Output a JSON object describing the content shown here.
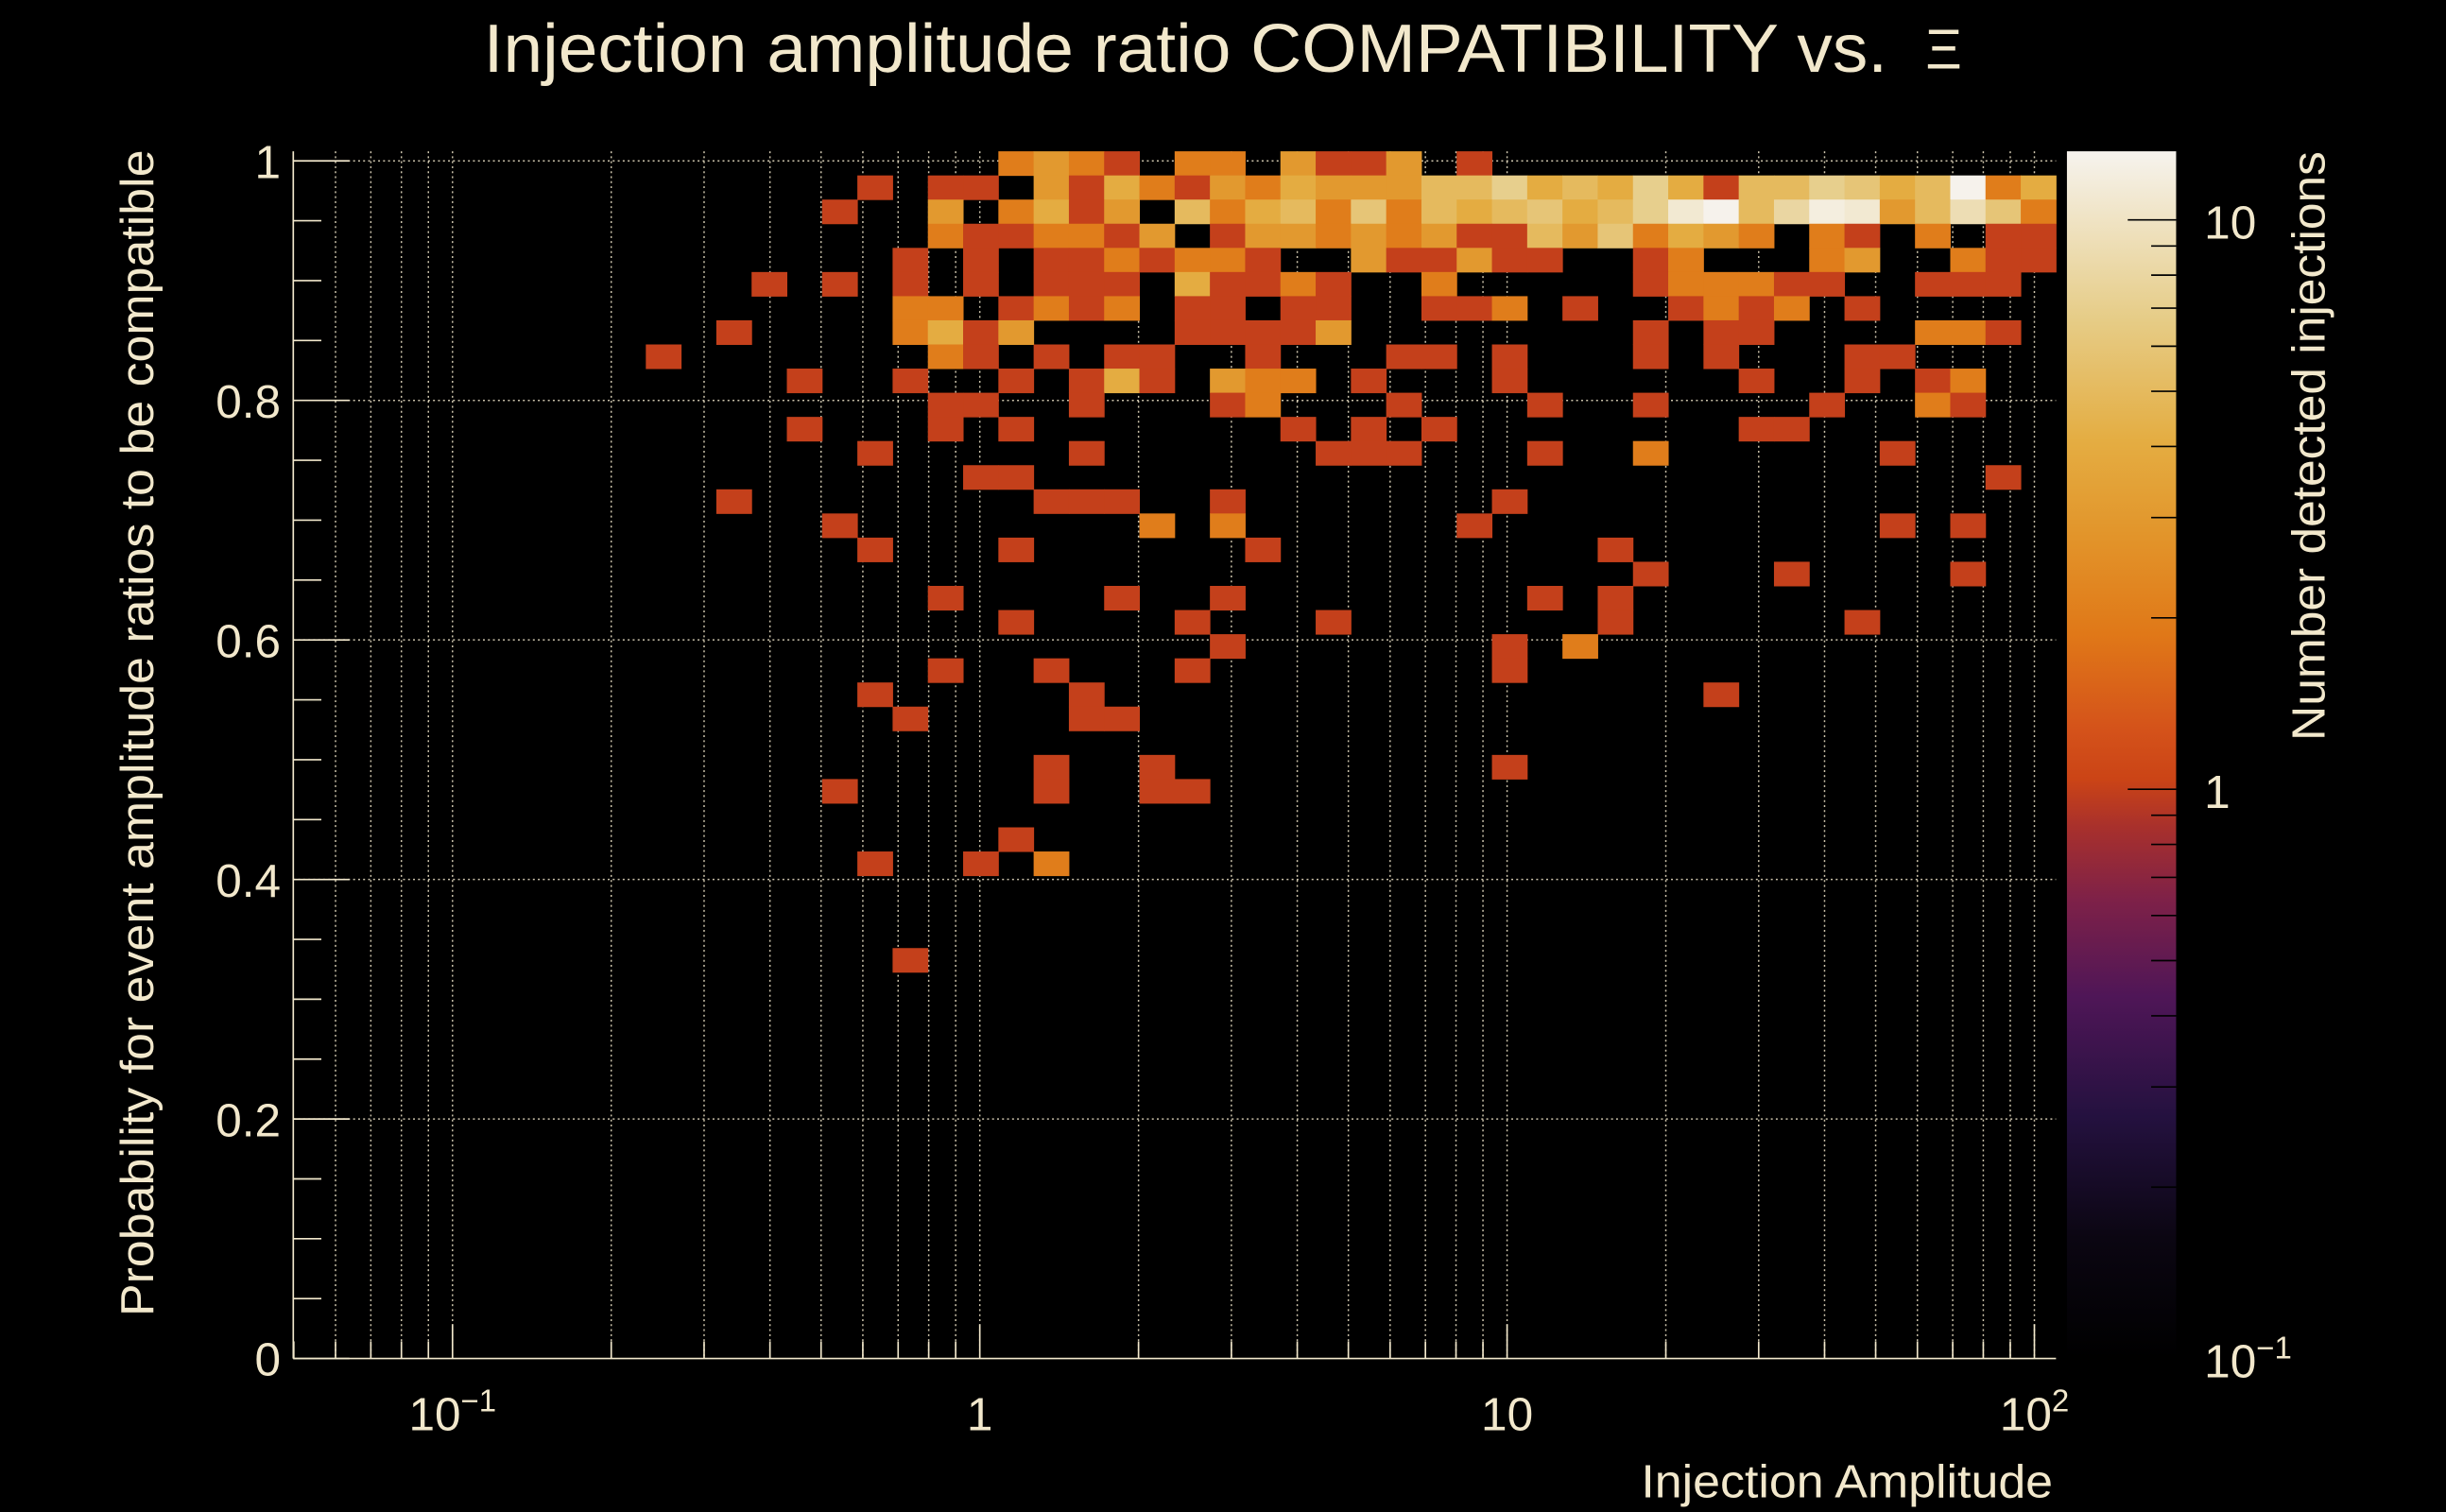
{
  "chart_data": {
    "type": "heatmap",
    "title": "Injection amplitude ratio COMPATIBILITY vs.",
    "title_symbol": "Ξ",
    "xlabel": "Injection Amplitude",
    "ylabel": "Probability for event amplitude ratios to be compatible",
    "zlabel": "Number detected injections",
    "x_scale": "log",
    "x_log10_range": [
      -1.302,
      2.041
    ],
    "x_bins": 50,
    "ylim": [
      0,
      1.008
    ],
    "y_bins": 50,
    "z_scale": "log",
    "zlim": [
      0.1,
      13.2
    ],
    "grid": true,
    "x_ticks": [
      {
        "value": 0.1,
        "base": "10",
        "exp": "−1"
      },
      {
        "value": 1,
        "base": "1",
        "exp": ""
      },
      {
        "value": 10,
        "base": "10",
        "exp": ""
      },
      {
        "value": 100,
        "base": "10",
        "exp": "2"
      }
    ],
    "y_ticks": [
      {
        "value": 0,
        "label": "0"
      },
      {
        "value": 0.2,
        "label": "0.2"
      },
      {
        "value": 0.4,
        "label": "0.4"
      },
      {
        "value": 0.6,
        "label": "0.6"
      },
      {
        "value": 0.8,
        "label": "0.8"
      },
      {
        "value": 1,
        "label": "1"
      }
    ],
    "z_ticks": [
      {
        "value": 0.1,
        "base": "10",
        "exp": "−1"
      },
      {
        "value": 1,
        "base": "1",
        "exp": ""
      },
      {
        "value": 10,
        "base": "10",
        "exp": ""
      }
    ],
    "palette": [
      [
        0.0,
        "#000000"
      ],
      [
        0.1,
        "#0b0612"
      ],
      [
        0.2,
        "#24113f"
      ],
      [
        0.3,
        "#4f1657"
      ],
      [
        0.38,
        "#7e2148"
      ],
      [
        0.44,
        "#a8302c"
      ],
      [
        0.48,
        "#cb4416"
      ],
      [
        0.52,
        "#d4521a"
      ],
      [
        0.6,
        "#e07818"
      ],
      [
        0.68,
        "#e2942a"
      ],
      [
        0.76,
        "#e4ad42"
      ],
      [
        0.86,
        "#e6cc86"
      ],
      [
        1.0,
        "#f6f3ee"
      ]
    ],
    "cells_format": "[x_bin_index, y_bin_index, count]",
    "cells": [
      [
        20,
        49,
        2
      ],
      [
        21,
        49,
        3
      ],
      [
        22,
        49,
        2
      ],
      [
        23,
        49,
        1
      ],
      [
        25,
        49,
        2
      ],
      [
        26,
        49,
        2
      ],
      [
        28,
        49,
        3
      ],
      [
        29,
        49,
        1
      ],
      [
        30,
        49,
        1
      ],
      [
        31,
        49,
        3
      ],
      [
        33,
        49,
        1
      ],
      [
        16,
        48,
        1
      ],
      [
        18,
        48,
        1
      ],
      [
        19,
        48,
        1
      ],
      [
        21,
        48,
        3
      ],
      [
        22,
        48,
        1
      ],
      [
        23,
        48,
        4
      ],
      [
        24,
        48,
        2
      ],
      [
        25,
        48,
        1
      ],
      [
        26,
        48,
        3
      ],
      [
        27,
        48,
        2
      ],
      [
        28,
        48,
        4
      ],
      [
        29,
        48,
        3
      ],
      [
        30,
        48,
        3
      ],
      [
        31,
        48,
        3
      ],
      [
        32,
        48,
        5
      ],
      [
        33,
        48,
        5
      ],
      [
        34,
        48,
        7
      ],
      [
        35,
        48,
        4
      ],
      [
        36,
        48,
        5
      ],
      [
        37,
        48,
        4
      ],
      [
        38,
        48,
        7
      ],
      [
        39,
        48,
        4
      ],
      [
        40,
        48,
        1
      ],
      [
        41,
        48,
        5
      ],
      [
        42,
        48,
        5
      ],
      [
        43,
        48,
        7
      ],
      [
        44,
        48,
        6
      ],
      [
        45,
        48,
        4
      ],
      [
        46,
        48,
        5
      ],
      [
        47,
        48,
        13
      ],
      [
        48,
        48,
        2
      ],
      [
        49,
        48,
        4
      ],
      [
        15,
        47,
        1
      ],
      [
        18,
        47,
        3
      ],
      [
        20,
        47,
        2
      ],
      [
        21,
        47,
        4
      ],
      [
        22,
        47,
        1
      ],
      [
        23,
        47,
        3
      ],
      [
        25,
        47,
        5
      ],
      [
        26,
        47,
        2
      ],
      [
        27,
        47,
        4
      ],
      [
        28,
        47,
        5
      ],
      [
        29,
        47,
        2
      ],
      [
        30,
        47,
        6
      ],
      [
        31,
        47,
        2
      ],
      [
        32,
        47,
        5
      ],
      [
        33,
        47,
        4
      ],
      [
        34,
        47,
        5
      ],
      [
        35,
        47,
        6
      ],
      [
        36,
        47,
        4
      ],
      [
        37,
        47,
        5
      ],
      [
        38,
        47,
        7
      ],
      [
        39,
        47,
        11
      ],
      [
        40,
        47,
        13
      ],
      [
        41,
        47,
        5
      ],
      [
        42,
        47,
        8
      ],
      [
        43,
        47,
        12
      ],
      [
        44,
        47,
        11
      ],
      [
        45,
        47,
        3
      ],
      [
        46,
        47,
        5
      ],
      [
        47,
        47,
        9
      ],
      [
        48,
        47,
        6
      ],
      [
        49,
        47,
        2
      ],
      [
        18,
        46,
        2
      ],
      [
        19,
        46,
        1
      ],
      [
        20,
        46,
        1
      ],
      [
        21,
        46,
        2
      ],
      [
        22,
        46,
        2
      ],
      [
        23,
        46,
        1
      ],
      [
        24,
        46,
        3
      ],
      [
        26,
        46,
        1
      ],
      [
        27,
        46,
        3
      ],
      [
        28,
        46,
        3
      ],
      [
        29,
        46,
        2
      ],
      [
        30,
        46,
        3
      ],
      [
        31,
        46,
        2
      ],
      [
        32,
        46,
        3
      ],
      [
        33,
        46,
        1
      ],
      [
        34,
        46,
        1
      ],
      [
        35,
        46,
        5
      ],
      [
        36,
        46,
        3
      ],
      [
        37,
        46,
        6
      ],
      [
        38,
        46,
        2
      ],
      [
        39,
        46,
        4
      ],
      [
        40,
        46,
        3
      ],
      [
        41,
        46,
        2
      ],
      [
        43,
        46,
        2
      ],
      [
        44,
        46,
        1
      ],
      [
        46,
        46,
        2
      ],
      [
        48,
        46,
        1
      ],
      [
        49,
        46,
        1
      ],
      [
        17,
        45,
        1
      ],
      [
        19,
        45,
        1
      ],
      [
        21,
        45,
        1
      ],
      [
        22,
        45,
        1
      ],
      [
        23,
        45,
        2
      ],
      [
        24,
        45,
        1
      ],
      [
        25,
        45,
        2
      ],
      [
        26,
        45,
        2
      ],
      [
        27,
        45,
        1
      ],
      [
        30,
        45,
        3
      ],
      [
        31,
        45,
        1
      ],
      [
        32,
        45,
        1
      ],
      [
        33,
        45,
        3
      ],
      [
        34,
        45,
        1
      ],
      [
        35,
        45,
        1
      ],
      [
        38,
        45,
        1
      ],
      [
        39,
        45,
        2
      ],
      [
        43,
        45,
        2
      ],
      [
        44,
        45,
        3
      ],
      [
        47,
        45,
        2
      ],
      [
        48,
        45,
        1
      ],
      [
        49,
        45,
        1
      ],
      [
        13,
        44,
        1
      ],
      [
        15,
        44,
        1
      ],
      [
        17,
        44,
        1
      ],
      [
        19,
        44,
        1
      ],
      [
        21,
        44,
        1
      ],
      [
        22,
        44,
        1
      ],
      [
        23,
        44,
        1
      ],
      [
        25,
        44,
        4
      ],
      [
        26,
        44,
        1
      ],
      [
        27,
        44,
        1
      ],
      [
        28,
        44,
        2
      ],
      [
        29,
        44,
        1
      ],
      [
        32,
        44,
        2
      ],
      [
        38,
        44,
        1
      ],
      [
        39,
        44,
        2
      ],
      [
        40,
        44,
        2
      ],
      [
        41,
        44,
        2
      ],
      [
        42,
        44,
        1
      ],
      [
        43,
        44,
        1
      ],
      [
        46,
        44,
        1
      ],
      [
        47,
        44,
        1
      ],
      [
        48,
        44,
        1
      ],
      [
        17,
        43,
        2
      ],
      [
        18,
        43,
        2
      ],
      [
        20,
        43,
        1
      ],
      [
        21,
        43,
        2
      ],
      [
        22,
        43,
        1
      ],
      [
        23,
        43,
        2
      ],
      [
        25,
        43,
        1
      ],
      [
        26,
        43,
        1
      ],
      [
        28,
        43,
        1
      ],
      [
        29,
        43,
        1
      ],
      [
        32,
        43,
        1
      ],
      [
        33,
        43,
        1
      ],
      [
        34,
        43,
        2
      ],
      [
        36,
        43,
        1
      ],
      [
        39,
        43,
        1
      ],
      [
        40,
        43,
        2
      ],
      [
        41,
        43,
        1
      ],
      [
        42,
        43,
        2
      ],
      [
        44,
        43,
        1
      ],
      [
        12,
        42,
        1
      ],
      [
        17,
        42,
        2
      ],
      [
        18,
        42,
        4
      ],
      [
        19,
        42,
        1
      ],
      [
        20,
        42,
        3
      ],
      [
        25,
        42,
        1
      ],
      [
        26,
        42,
        1
      ],
      [
        27,
        42,
        1
      ],
      [
        28,
        42,
        1
      ],
      [
        29,
        42,
        3
      ],
      [
        38,
        42,
        1
      ],
      [
        40,
        42,
        1
      ],
      [
        41,
        42,
        1
      ],
      [
        46,
        42,
        2
      ],
      [
        47,
        42,
        2
      ],
      [
        48,
        42,
        1
      ],
      [
        10,
        41,
        1
      ],
      [
        18,
        41,
        2
      ],
      [
        19,
        41,
        1
      ],
      [
        21,
        41,
        1
      ],
      [
        23,
        41,
        1
      ],
      [
        24,
        41,
        1
      ],
      [
        27,
        41,
        1
      ],
      [
        31,
        41,
        1
      ],
      [
        32,
        41,
        1
      ],
      [
        34,
        41,
        1
      ],
      [
        38,
        41,
        1
      ],
      [
        40,
        41,
        1
      ],
      [
        44,
        41,
        1
      ],
      [
        45,
        41,
        1
      ],
      [
        14,
        40,
        1
      ],
      [
        17,
        40,
        1
      ],
      [
        20,
        40,
        1
      ],
      [
        22,
        40,
        1
      ],
      [
        23,
        40,
        4
      ],
      [
        24,
        40,
        1
      ],
      [
        26,
        40,
        3
      ],
      [
        27,
        40,
        2
      ],
      [
        28,
        40,
        2
      ],
      [
        30,
        40,
        1
      ],
      [
        34,
        40,
        1
      ],
      [
        41,
        40,
        1
      ],
      [
        44,
        40,
        1
      ],
      [
        46,
        40,
        1
      ],
      [
        47,
        40,
        2
      ],
      [
        18,
        39,
        1
      ],
      [
        19,
        39,
        1
      ],
      [
        22,
        39,
        1
      ],
      [
        26,
        39,
        1
      ],
      [
        27,
        39,
        2
      ],
      [
        31,
        39,
        1
      ],
      [
        35,
        39,
        1
      ],
      [
        38,
        39,
        1
      ],
      [
        43,
        39,
        1
      ],
      [
        46,
        39,
        2
      ],
      [
        47,
        39,
        1
      ],
      [
        14,
        38,
        1
      ],
      [
        18,
        38,
        1
      ],
      [
        20,
        38,
        1
      ],
      [
        28,
        38,
        1
      ],
      [
        30,
        38,
        1
      ],
      [
        32,
        38,
        1
      ],
      [
        41,
        38,
        1
      ],
      [
        42,
        38,
        1
      ],
      [
        16,
        37,
        1
      ],
      [
        22,
        37,
        1
      ],
      [
        29,
        37,
        1
      ],
      [
        30,
        37,
        1
      ],
      [
        31,
        37,
        1
      ],
      [
        35,
        37,
        1
      ],
      [
        38,
        37,
        2
      ],
      [
        45,
        37,
        1
      ],
      [
        19,
        36,
        1
      ],
      [
        20,
        36,
        1
      ],
      [
        48,
        36,
        1
      ],
      [
        12,
        35,
        1
      ],
      [
        21,
        35,
        1
      ],
      [
        22,
        35,
        1
      ],
      [
        23,
        35,
        1
      ],
      [
        26,
        35,
        1
      ],
      [
        34,
        35,
        1
      ],
      [
        15,
        34,
        1
      ],
      [
        24,
        34,
        2
      ],
      [
        26,
        34,
        2
      ],
      [
        33,
        34,
        1
      ],
      [
        45,
        34,
        1
      ],
      [
        47,
        34,
        1
      ],
      [
        16,
        33,
        1
      ],
      [
        20,
        33,
        1
      ],
      [
        27,
        33,
        1
      ],
      [
        37,
        33,
        1
      ],
      [
        38,
        32,
        1
      ],
      [
        42,
        32,
        1
      ],
      [
        47,
        32,
        1
      ],
      [
        18,
        31,
        1
      ],
      [
        23,
        31,
        1
      ],
      [
        26,
        31,
        1
      ],
      [
        35,
        31,
        1
      ],
      [
        37,
        31,
        1
      ],
      [
        20,
        30,
        1
      ],
      [
        25,
        30,
        1
      ],
      [
        29,
        30,
        1
      ],
      [
        37,
        30,
        1
      ],
      [
        44,
        30,
        1
      ],
      [
        26,
        29,
        1
      ],
      [
        34,
        29,
        1
      ],
      [
        36,
        29,
        2
      ],
      [
        18,
        28,
        1
      ],
      [
        21,
        28,
        1
      ],
      [
        25,
        28,
        1
      ],
      [
        34,
        28,
        1
      ],
      [
        16,
        27,
        1
      ],
      [
        22,
        27,
        1
      ],
      [
        40,
        27,
        1
      ],
      [
        17,
        26,
        1
      ],
      [
        22,
        26,
        1
      ],
      [
        23,
        26,
        1
      ],
      [
        21,
        24,
        1
      ],
      [
        24,
        24,
        1
      ],
      [
        34,
        24,
        1
      ],
      [
        15,
        23,
        1
      ],
      [
        21,
        23,
        1
      ],
      [
        24,
        23,
        1
      ],
      [
        25,
        23,
        1
      ],
      [
        20,
        21,
        1
      ],
      [
        16,
        20,
        1
      ],
      [
        19,
        20,
        1
      ],
      [
        21,
        20,
        2
      ],
      [
        17,
        16,
        1
      ]
    ]
  }
}
